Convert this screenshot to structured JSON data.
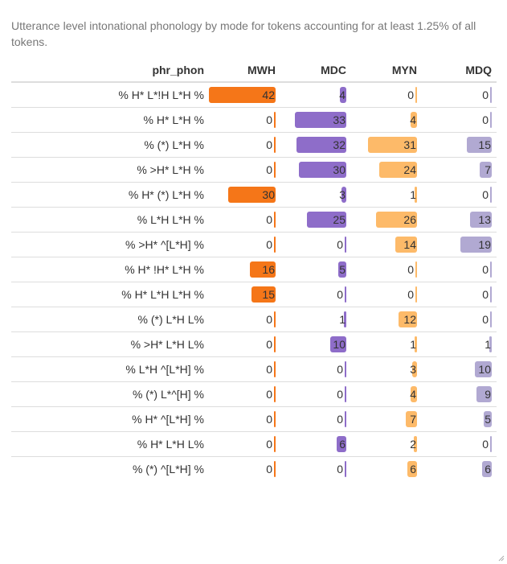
{
  "caption": "Utterance level intonational phonology by mode for tokens accounting for at least 1.25% of all tokens.",
  "colors": {
    "MWH": "#F57618",
    "MDC": "#8E6DC9",
    "MYN": "#FDBA69",
    "MDQ": "#B1A9D2"
  },
  "chart_data": {
    "type": "table",
    "title": "Utterance level intonational phonology by mode for tokens accounting for at least 1.25% of all tokens.",
    "row_header": "phr_phon",
    "columns": [
      "MWH",
      "MDC",
      "MYN",
      "MDQ"
    ],
    "max": 42,
    "rows": [
      {
        "label": "% H* L*!H L*H %",
        "values": [
          42,
          4,
          0,
          0
        ]
      },
      {
        "label": "% H* L*H %",
        "values": [
          0,
          33,
          4,
          0
        ]
      },
      {
        "label": "% (*) L*H %",
        "values": [
          0,
          32,
          31,
          15
        ]
      },
      {
        "label": "% >H* L*H %",
        "values": [
          0,
          30,
          24,
          7
        ]
      },
      {
        "label": "% H* (*) L*H %",
        "values": [
          30,
          3,
          1,
          0
        ]
      },
      {
        "label": "% L*H L*H %",
        "values": [
          0,
          25,
          26,
          13
        ]
      },
      {
        "label": "% >H* ^[L*H] %",
        "values": [
          0,
          0,
          14,
          19
        ]
      },
      {
        "label": "% H* !H* L*H %",
        "values": [
          16,
          5,
          0,
          0
        ]
      },
      {
        "label": "% H* L*H L*H %",
        "values": [
          15,
          0,
          0,
          0
        ]
      },
      {
        "label": "% (*) L*H L%",
        "values": [
          0,
          1,
          12,
          0
        ]
      },
      {
        "label": "% >H* L*H L%",
        "values": [
          0,
          10,
          1,
          1
        ]
      },
      {
        "label": "% L*H ^[L*H] %",
        "values": [
          0,
          0,
          3,
          10
        ]
      },
      {
        "label": "% (*) L*^[H] %",
        "values": [
          0,
          0,
          4,
          9
        ]
      },
      {
        "label": "% H* ^[L*H] %",
        "values": [
          0,
          0,
          7,
          5
        ]
      },
      {
        "label": "% H* L*H L%",
        "values": [
          0,
          6,
          2,
          0
        ]
      },
      {
        "label": "% (*) ^[L*H] %",
        "values": [
          0,
          0,
          6,
          6
        ]
      }
    ]
  }
}
